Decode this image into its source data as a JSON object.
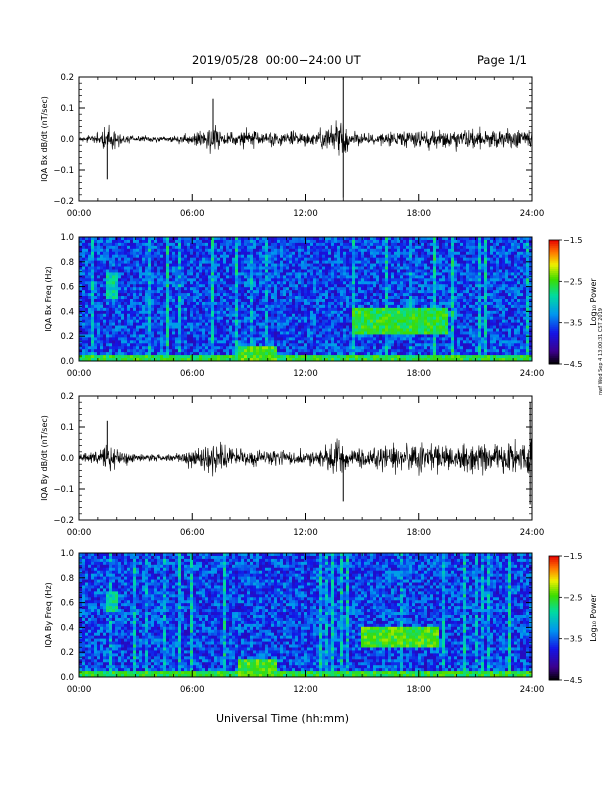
{
  "header": {
    "title": "2019/05/28  00:00−24:00 UT",
    "page": "Page 1/1"
  },
  "side_note": "nwf Wed Sep 4 13:00:31 CST 2019",
  "chart_data": [
    {
      "type": "line",
      "ylabel": "IQA Bx dB/dt (nT/sec)",
      "xlabel": "",
      "xlim": [
        "00:00",
        "24:00"
      ],
      "ylim": [
        -0.2,
        0.2
      ],
      "x_ticks": [
        "00:00",
        "06:00",
        "12:00",
        "18:00",
        "24:00"
      ],
      "y_ticks": [
        "0.2",
        "0.1",
        "0.0",
        "−0.1",
        "−0.2"
      ],
      "amplitude_envelope": {
        "x_hours": [
          0,
          1,
          1.5,
          2,
          3,
          5,
          6.5,
          7.2,
          8,
          9,
          10,
          11,
          12,
          13,
          13.7,
          14.3,
          15,
          16,
          17,
          18,
          19,
          20,
          21,
          22,
          23,
          24
        ],
        "amplitude": [
          0.015,
          0.025,
          0.08,
          0.04,
          0.015,
          0.015,
          0.05,
          0.08,
          0.04,
          0.05,
          0.035,
          0.04,
          0.04,
          0.045,
          0.14,
          0.05,
          0.03,
          0.035,
          0.045,
          0.045,
          0.05,
          0.05,
          0.055,
          0.05,
          0.05,
          0.05
        ]
      },
      "spikes": [
        {
          "x_hours": 14.0,
          "y": 0.2
        },
        {
          "x_hours": 14.0,
          "y": -0.19
        },
        {
          "x_hours": 1.5,
          "y": -0.13
        },
        {
          "x_hours": 7.1,
          "y": 0.13
        }
      ]
    },
    {
      "type": "heatmap",
      "ylabel": "IQA Bx Freq (Hz)",
      "xlabel": "",
      "xlim": [
        "00:00",
        "24:00"
      ],
      "ylim": [
        0.0,
        1.0
      ],
      "x_ticks": [
        "00:00",
        "06:00",
        "12:00",
        "18:00",
        "24:00"
      ],
      "y_ticks": [
        "1.0",
        "0.8",
        "0.6",
        "0.4",
        "0.2",
        "0.0"
      ],
      "colorbar": {
        "label": "Log₁₀ Power",
        "range": [
          -4.5,
          -1.5
        ],
        "ticks": [
          "−1.5",
          "−2.5",
          "−3.5",
          "−4.5"
        ]
      },
      "background_level": -3.6,
      "features": [
        {
          "t0": 1.5,
          "t1": 2.1,
          "f0": 0.5,
          "f1": 0.72,
          "level": -2.9
        },
        {
          "t0": 14.5,
          "t1": 19.5,
          "f0": 0.22,
          "f1": 0.42,
          "level": -2.6
        },
        {
          "t0": 8.5,
          "t1": 10.5,
          "f0": 0.0,
          "f1": 0.12,
          "level": -2.5
        },
        {
          "t0": 0.0,
          "t1": 24.0,
          "f0": 0.0,
          "f1": 0.05,
          "level": -2.6
        }
      ]
    },
    {
      "type": "line",
      "ylabel": "IQA By dB/dt (nT/sec)",
      "xlabel": "",
      "xlim": [
        "00:00",
        "24:00"
      ],
      "ylim": [
        -0.2,
        0.2
      ],
      "x_ticks": [
        "00:00",
        "06:00",
        "12:00",
        "18:00",
        "24:00"
      ],
      "y_ticks": [
        "0.2",
        "0.1",
        "0.0",
        "−0.1",
        "−0.2"
      ],
      "amplitude_envelope": {
        "x_hours": [
          0,
          1,
          1.5,
          2,
          3,
          5,
          6.5,
          7.2,
          8,
          9,
          10,
          11,
          12,
          13,
          13.7,
          14.3,
          15,
          16,
          17,
          18,
          19,
          20,
          21,
          22,
          23,
          24
        ],
        "amplitude": [
          0.02,
          0.04,
          0.1,
          0.05,
          0.02,
          0.02,
          0.06,
          0.09,
          0.05,
          0.05,
          0.04,
          0.04,
          0.04,
          0.05,
          0.1,
          0.05,
          0.05,
          0.06,
          0.07,
          0.08,
          0.07,
          0.07,
          0.08,
          0.07,
          0.1,
          0.12
        ]
      },
      "spikes": [
        {
          "x_hours": 23.9,
          "y": 0.18
        },
        {
          "x_hours": 23.9,
          "y": -0.15
        },
        {
          "x_hours": 14.0,
          "y": -0.14
        },
        {
          "x_hours": 1.5,
          "y": 0.12
        }
      ]
    },
    {
      "type": "heatmap",
      "ylabel": "IQA By Freq (Hz)",
      "xlabel": "Universal Time (hh:mm)",
      "xlim": [
        "00:00",
        "24:00"
      ],
      "ylim": [
        0.0,
        1.0
      ],
      "x_ticks": [
        "00:00",
        "06:00",
        "12:00",
        "18:00",
        "24:00"
      ],
      "y_ticks": [
        "1.0",
        "0.8",
        "0.6",
        "0.4",
        "0.2",
        "0.0"
      ],
      "colorbar": {
        "label": "Log₁₀ Power",
        "range": [
          -4.5,
          -1.5
        ],
        "ticks": [
          "−1.5",
          "−2.5",
          "−3.5",
          "−4.5"
        ]
      },
      "background_level": -3.6,
      "features": [
        {
          "t0": 1.5,
          "t1": 2.1,
          "f0": 0.52,
          "f1": 0.7,
          "level": -2.9
        },
        {
          "t0": 15.0,
          "t1": 19.0,
          "f0": 0.25,
          "f1": 0.4,
          "level": -2.5
        },
        {
          "t0": 8.5,
          "t1": 10.5,
          "f0": 0.0,
          "f1": 0.15,
          "level": -2.5
        },
        {
          "t0": 0.0,
          "t1": 24.0,
          "f0": 0.0,
          "f1": 0.05,
          "level": -2.6
        }
      ]
    }
  ]
}
